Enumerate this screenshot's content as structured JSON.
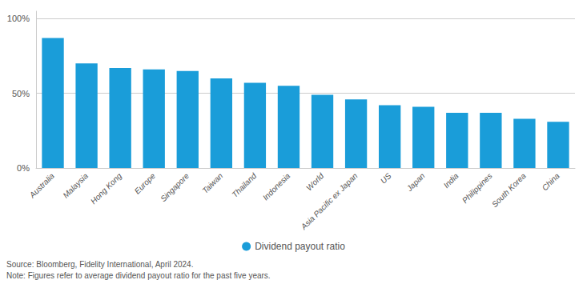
{
  "chart_data": {
    "type": "bar",
    "categories": [
      "Australia",
      "Malaysia",
      "Hong Kong",
      "Europe",
      "Singapore",
      "Taiwan",
      "Thailand",
      "Indonesia",
      "World",
      "Asia Pacific ex Japan",
      "US",
      "Japan",
      "India",
      "Philippines",
      "South Korea",
      "China"
    ],
    "series": [
      {
        "name": "Dividend payout ratio",
        "color": "#1A9DD9",
        "values": [
          87,
          70,
          67,
          66,
          65,
          60,
          57,
          55,
          49,
          46,
          42,
          41,
          37,
          37,
          33,
          31
        ]
      }
    ],
    "ylim": [
      0,
      105
    ],
    "yticks": [
      {
        "value": 0,
        "label": "0%"
      },
      {
        "value": 50,
        "label": "50%"
      },
      {
        "value": 100,
        "label": "100%"
      }
    ],
    "grid": true,
    "legend": "bottom",
    "annotations": [
      "Source: Bloomberg, Fidelity International, April 2024.",
      "Note: Figures refer to average dividend payout ratio for the past five years."
    ]
  }
}
